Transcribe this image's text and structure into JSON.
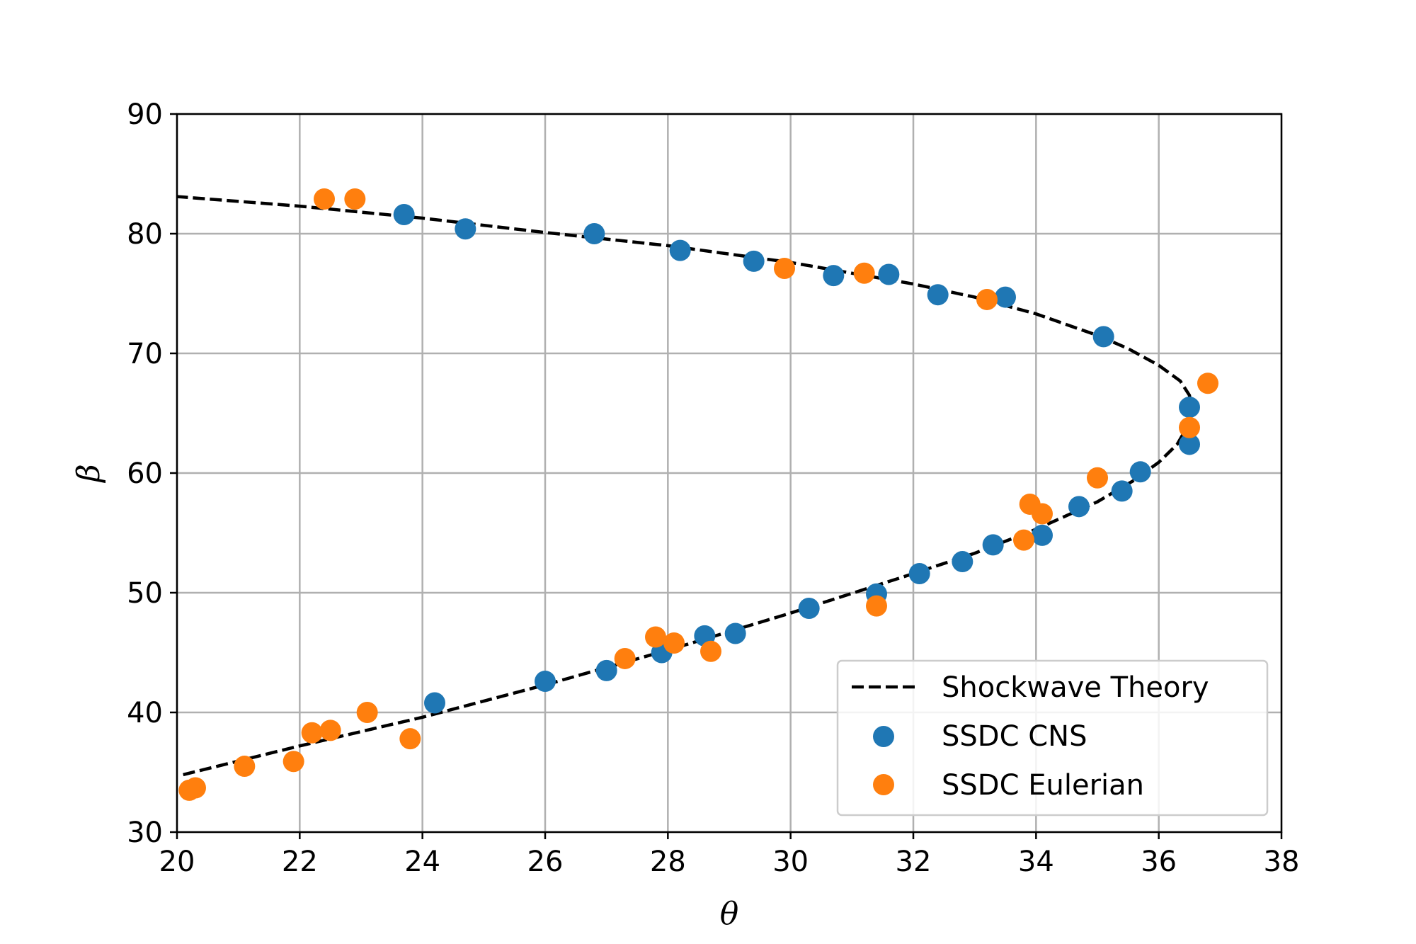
{
  "chart_data": {
    "type": "scatter",
    "title": "",
    "xlabel": "θ",
    "ylabel": "β",
    "xlim": [
      20,
      38
    ],
    "ylim": [
      30,
      90
    ],
    "x_ticks": [
      20,
      22,
      24,
      26,
      28,
      30,
      32,
      34,
      36,
      38
    ],
    "y_ticks": [
      30,
      40,
      50,
      60,
      70,
      80,
      90
    ],
    "grid": true,
    "legend_position": "lower-right",
    "series": [
      {
        "name": "Shockwave Theory",
        "kind": "line",
        "style": "dashed",
        "color": "#000000",
        "points": [
          [
            20.1,
            34.8
          ],
          [
            22.0,
            37.2
          ],
          [
            24.0,
            39.6
          ],
          [
            26.0,
            42.3
          ],
          [
            28.0,
            45.2
          ],
          [
            30.0,
            48.3
          ],
          [
            32.0,
            51.6
          ],
          [
            33.0,
            53.3
          ],
          [
            34.0,
            55.3
          ],
          [
            35.0,
            57.6
          ],
          [
            35.6,
            59.4
          ],
          [
            36.0,
            60.9
          ],
          [
            36.3,
            62.4
          ],
          [
            36.48,
            64.0
          ],
          [
            36.54,
            65.3
          ],
          [
            36.5,
            66.5
          ],
          [
            36.35,
            67.7
          ],
          [
            36.0,
            69.0
          ],
          [
            35.5,
            70.4
          ],
          [
            35.0,
            71.5
          ],
          [
            34.0,
            73.3
          ],
          [
            33.0,
            74.7
          ],
          [
            32.0,
            75.8
          ],
          [
            30.0,
            77.6
          ],
          [
            28.0,
            79.0
          ],
          [
            26.0,
            80.1
          ],
          [
            24.0,
            81.3
          ],
          [
            22.0,
            82.3
          ],
          [
            20.0,
            83.1
          ]
        ]
      },
      {
        "name": "SSDC CNS",
        "kind": "scatter",
        "color": "#1f77b4",
        "points": [
          [
            23.7,
            81.6
          ],
          [
            24.7,
            80.4
          ],
          [
            26.8,
            80.0
          ],
          [
            28.2,
            78.6
          ],
          [
            29.4,
            77.7
          ],
          [
            30.7,
            76.5
          ],
          [
            31.6,
            76.6
          ],
          [
            32.4,
            74.9
          ],
          [
            33.5,
            74.7
          ],
          [
            35.1,
            71.4
          ],
          [
            36.5,
            65.5
          ],
          [
            36.5,
            62.4
          ],
          [
            35.7,
            60.1
          ],
          [
            35.4,
            58.5
          ],
          [
            34.7,
            57.2
          ],
          [
            34.1,
            54.8
          ],
          [
            33.3,
            54.0
          ],
          [
            32.8,
            52.6
          ],
          [
            32.1,
            51.6
          ],
          [
            31.4,
            49.9
          ],
          [
            30.3,
            48.7
          ],
          [
            29.1,
            46.6
          ],
          [
            28.6,
            46.4
          ],
          [
            27.9,
            45.0
          ],
          [
            27.0,
            43.5
          ],
          [
            26.0,
            42.6
          ],
          [
            24.2,
            40.8
          ]
        ]
      },
      {
        "name": "SSDC Eulerian",
        "kind": "scatter",
        "color": "#ff7f0e",
        "points": [
          [
            22.4,
            82.9
          ],
          [
            22.9,
            82.9
          ],
          [
            29.9,
            77.1
          ],
          [
            31.2,
            76.7
          ],
          [
            33.2,
            74.5
          ],
          [
            36.8,
            67.5
          ],
          [
            36.5,
            63.8
          ],
          [
            35.0,
            59.6
          ],
          [
            33.9,
            57.4
          ],
          [
            34.1,
            56.6
          ],
          [
            33.8,
            54.4
          ],
          [
            31.4,
            48.9
          ],
          [
            27.8,
            46.3
          ],
          [
            28.1,
            45.8
          ],
          [
            28.7,
            45.1
          ],
          [
            27.3,
            44.5
          ],
          [
            23.1,
            40.0
          ],
          [
            23.8,
            37.8
          ],
          [
            22.5,
            38.5
          ],
          [
            22.2,
            38.3
          ],
          [
            21.9,
            35.9
          ],
          [
            21.1,
            35.5
          ],
          [
            20.3,
            33.7
          ],
          [
            20.2,
            33.5
          ]
        ]
      }
    ]
  }
}
